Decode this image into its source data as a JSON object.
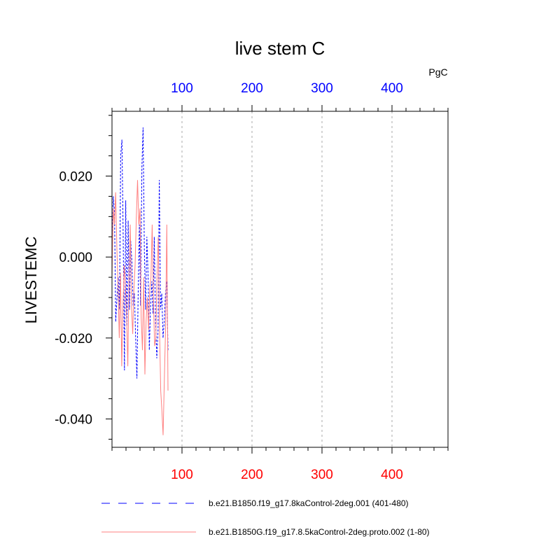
{
  "chart_data": {
    "type": "line",
    "title": "live stem C",
    "ylabel": "LIVESTEMC",
    "units": "PgC",
    "xlim": [
      0,
      480
    ],
    "ylim": [
      -0.047,
      0.036
    ],
    "x_ticks": [
      100,
      200,
      300,
      400
    ],
    "x_tick_labels": [
      "100",
      "200",
      "300",
      "400"
    ],
    "y_ticks": [
      -0.04,
      -0.02,
      0.0,
      0.02
    ],
    "y_tick_labels": [
      "-0.040",
      "-0.020",
      "0.000",
      "0.020"
    ],
    "grid": "x-dashed",
    "colors": {
      "top_axis": "#0000ff",
      "bottom_axis": "#ff0000"
    },
    "series": [
      {
        "name": "b.e21.B1850.f19_g17.8kaControl-2deg.001 (401-480)",
        "color": "#0000ff",
        "style": "dashed",
        "values": [
          0.002,
          0.015,
          0.011,
          -0.016,
          -0.01,
          -0.005,
          -0.013,
          0.025,
          0.029,
          0.005,
          -0.028,
          0.014,
          -0.017,
          0.009,
          -0.013,
          0.004,
          -0.001,
          -0.012,
          -0.009,
          -0.02,
          -0.03,
          -0.01,
          0.008,
          -0.012,
          0.022,
          0.032,
          0.002,
          -0.013,
          0.005,
          -0.005,
          -0.023,
          -0.012,
          -0.006,
          -0.014,
          0.005,
          -0.016,
          -0.025,
          -0.018,
          0.019,
          -0.013,
          -0.009,
          -0.02,
          -0.016,
          -0.009,
          -0.006,
          -0.023
        ]
      },
      {
        "name": "b.e21.B1850G.f19_g17.8.5kaControl-2deg.proto.002 (1-80)",
        "color": "#ff8080",
        "style": "solid",
        "values": [
          -0.005,
          0.012,
          0.008,
          0.016,
          0.002,
          -0.008,
          -0.02,
          -0.004,
          -0.027,
          -0.012,
          -0.002,
          -0.007,
          -0.015,
          -0.027,
          -0.005,
          0.008,
          -0.012,
          -0.019,
          -0.008,
          -0.002,
          0.01,
          0.019,
          0.008,
          0.012,
          -0.015,
          -0.023,
          -0.005,
          -0.029,
          -0.016,
          -0.01,
          -0.018,
          -0.008,
          -0.005,
          0.008,
          -0.01,
          -0.022,
          -0.02,
          -0.005,
          0.005,
          -0.017,
          -0.033,
          -0.038,
          -0.044,
          -0.03,
          -0.018,
          0.008,
          -0.033
        ]
      }
    ]
  }
}
